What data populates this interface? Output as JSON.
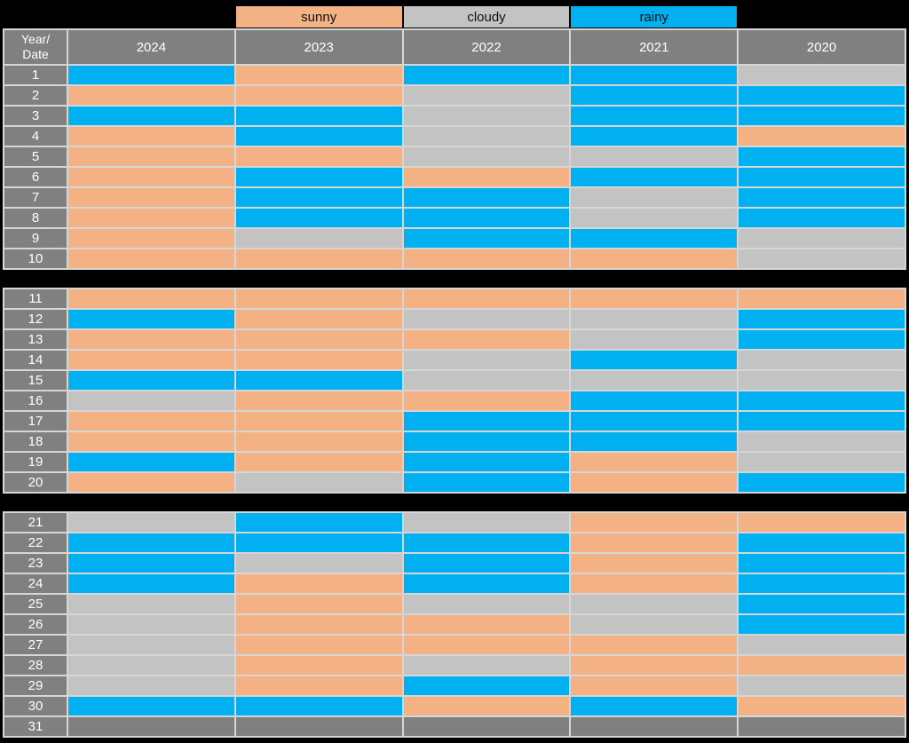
{
  "legend": {
    "items": [
      {
        "label": "sunny",
        "color": "#F4B183"
      },
      {
        "label": "cloudy",
        "color": "#C3C3C3"
      },
      {
        "label": "rainy",
        "color": "#00B0F0"
      }
    ]
  },
  "header": {
    "corner": "Year/\nDate",
    "years": [
      "2024",
      "2023",
      "2022",
      "2021",
      "2020"
    ]
  },
  "colors": {
    "page_background": "#000000",
    "header_bg": "#808080",
    "header_text": "#FFFFFF",
    "grid_line": "#D6D6D6",
    "categories": {
      "sunny": "#F4B183",
      "cloudy": "#C3C3C3",
      "rainy": "#00B0F0",
      "none": "#808080"
    }
  },
  "chart_data": {
    "type": "heatmap",
    "title": "",
    "x_categories": [
      "2024",
      "2023",
      "2022",
      "2021",
      "2020"
    ],
    "y_axis_label": "Year/Date",
    "y_categories": [
      "1",
      "2",
      "3",
      "4",
      "5",
      "6",
      "7",
      "8",
      "9",
      "10",
      "11",
      "12",
      "13",
      "14",
      "15",
      "16",
      "17",
      "18",
      "19",
      "20",
      "21",
      "22",
      "23",
      "24",
      "25",
      "26",
      "27",
      "28",
      "29",
      "30",
      "31"
    ],
    "legend_entries": [
      "sunny",
      "cloudy",
      "rainy"
    ],
    "legend_position": "top",
    "sections": [
      {
        "rows": [
          {
            "date": "1",
            "values": [
              "rainy",
              "sunny",
              "rainy",
              "rainy",
              "cloudy"
            ]
          },
          {
            "date": "2",
            "values": [
              "sunny",
              "sunny",
              "cloudy",
              "rainy",
              "rainy"
            ]
          },
          {
            "date": "3",
            "values": [
              "rainy",
              "rainy",
              "cloudy",
              "rainy",
              "rainy"
            ]
          },
          {
            "date": "4",
            "values": [
              "sunny",
              "rainy",
              "cloudy",
              "rainy",
              "sunny"
            ]
          },
          {
            "date": "5",
            "values": [
              "sunny",
              "sunny",
              "cloudy",
              "cloudy",
              "rainy"
            ]
          },
          {
            "date": "6",
            "values": [
              "sunny",
              "rainy",
              "sunny",
              "rainy",
              "rainy"
            ]
          },
          {
            "date": "7",
            "values": [
              "sunny",
              "rainy",
              "rainy",
              "cloudy",
              "rainy"
            ]
          },
          {
            "date": "8",
            "values": [
              "sunny",
              "rainy",
              "rainy",
              "cloudy",
              "rainy"
            ]
          },
          {
            "date": "9",
            "values": [
              "sunny",
              "cloudy",
              "rainy",
              "rainy",
              "cloudy"
            ]
          },
          {
            "date": "10",
            "values": [
              "sunny",
              "sunny",
              "sunny",
              "sunny",
              "cloudy"
            ]
          }
        ]
      },
      {
        "rows": [
          {
            "date": "11",
            "values": [
              "sunny",
              "sunny",
              "sunny",
              "sunny",
              "sunny"
            ]
          },
          {
            "date": "12",
            "values": [
              "rainy",
              "sunny",
              "cloudy",
              "cloudy",
              "rainy"
            ]
          },
          {
            "date": "13",
            "values": [
              "sunny",
              "sunny",
              "sunny",
              "cloudy",
              "rainy"
            ]
          },
          {
            "date": "14",
            "values": [
              "sunny",
              "sunny",
              "cloudy",
              "rainy",
              "cloudy"
            ]
          },
          {
            "date": "15",
            "values": [
              "rainy",
              "rainy",
              "cloudy",
              "cloudy",
              "cloudy"
            ]
          },
          {
            "date": "16",
            "values": [
              "cloudy",
              "sunny",
              "sunny",
              "rainy",
              "rainy"
            ]
          },
          {
            "date": "17",
            "values": [
              "sunny",
              "sunny",
              "rainy",
              "rainy",
              "rainy"
            ]
          },
          {
            "date": "18",
            "values": [
              "sunny",
              "sunny",
              "rainy",
              "rainy",
              "cloudy"
            ]
          },
          {
            "date": "19",
            "values": [
              "rainy",
              "sunny",
              "rainy",
              "sunny",
              "cloudy"
            ]
          },
          {
            "date": "20",
            "values": [
              "sunny",
              "cloudy",
              "rainy",
              "sunny",
              "rainy"
            ]
          }
        ]
      },
      {
        "rows": [
          {
            "date": "21",
            "values": [
              "cloudy",
              "rainy",
              "cloudy",
              "sunny",
              "sunny"
            ]
          },
          {
            "date": "22",
            "values": [
              "rainy",
              "rainy",
              "rainy",
              "sunny",
              "rainy"
            ]
          },
          {
            "date": "23",
            "values": [
              "rainy",
              "cloudy",
              "rainy",
              "sunny",
              "rainy"
            ]
          },
          {
            "date": "24",
            "values": [
              "rainy",
              "sunny",
              "rainy",
              "sunny",
              "rainy"
            ]
          },
          {
            "date": "25",
            "values": [
              "cloudy",
              "sunny",
              "cloudy",
              "cloudy",
              "rainy"
            ]
          },
          {
            "date": "26",
            "values": [
              "cloudy",
              "sunny",
              "sunny",
              "cloudy",
              "rainy"
            ]
          },
          {
            "date": "27",
            "values": [
              "cloudy",
              "sunny",
              "sunny",
              "sunny",
              "cloudy"
            ]
          },
          {
            "date": "28",
            "values": [
              "cloudy",
              "sunny",
              "cloudy",
              "sunny",
              "sunny"
            ]
          },
          {
            "date": "29",
            "values": [
              "cloudy",
              "sunny",
              "rainy",
              "sunny",
              "cloudy"
            ]
          },
          {
            "date": "30",
            "values": [
              "rainy",
              "rainy",
              "sunny",
              "rainy",
              "sunny"
            ]
          },
          {
            "date": "31",
            "values": [
              "none",
              "none",
              "none",
              "none",
              "none"
            ]
          }
        ]
      }
    ]
  }
}
